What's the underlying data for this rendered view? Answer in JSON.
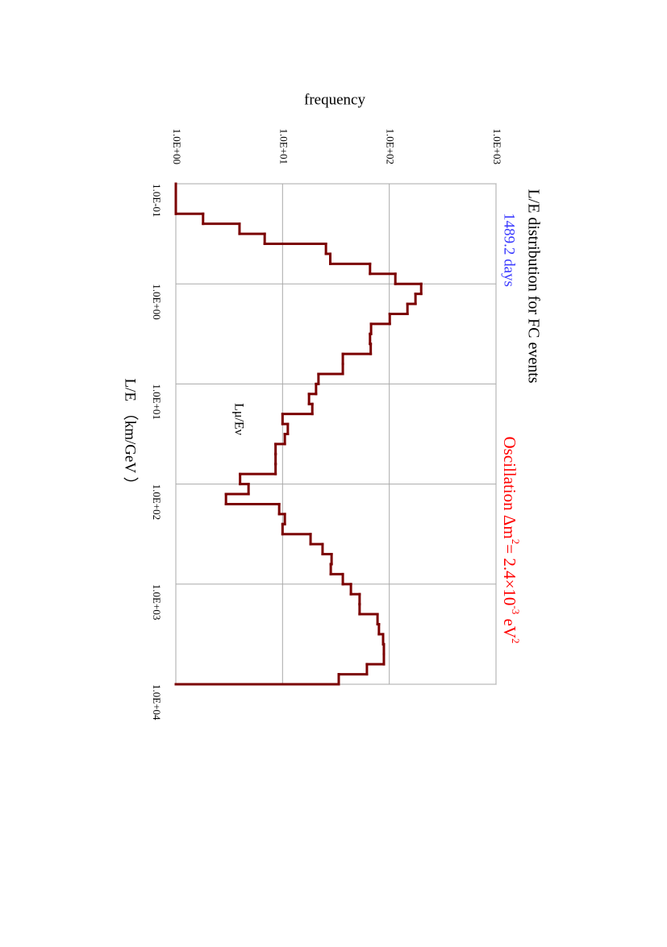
{
  "chart_data": {
    "type": "histogram",
    "title": "L/E distribution for FC events",
    "subtitle": "1489.2 days",
    "subtitle_color": "#3a3aff",
    "oscillation_text": [
      {
        "text": "Oscillation Δm"
      },
      {
        "text": "2",
        "sup": true
      },
      {
        "text": "= 2.4×10"
      },
      {
        "text": "-3",
        "sup": true
      },
      {
        "text": " eV"
      },
      {
        "text": "2",
        "sup": true
      }
    ],
    "oscillation_color": "#ff0000",
    "series_label": "Lμ/Eν",
    "x_label": "L/E （km/GeV ）",
    "y_label": "frequency",
    "color": "#7b0000",
    "log_x": true,
    "log_y": true,
    "grid": true,
    "xlim": [
      0.1,
      10000
    ],
    "ylim": [
      1,
      1000
    ],
    "xticks": [
      {
        "value": 0.1,
        "label": "1.0E-01"
      },
      {
        "value": 1,
        "label": "1.0E+00"
      },
      {
        "value": 10,
        "label": "1.0E+01"
      },
      {
        "value": 100,
        "label": "1.0E+02"
      },
      {
        "value": 1000,
        "label": "1.0E+03"
      },
      {
        "value": 10000,
        "label": "1.0E+04"
      }
    ],
    "yticks": [
      {
        "value": 1,
        "label": "1.0E+00"
      },
      {
        "value": 10,
        "label": "1.0E+01"
      },
      {
        "value": 100,
        "label": "1.0E+02"
      },
      {
        "value": 1000,
        "label": "1.0E+03"
      }
    ],
    "bins": [
      0.1,
      0.1259,
      0.1585,
      0.1995,
      0.2512,
      0.3162,
      0.3981,
      0.5012,
      0.631,
      0.7943,
      1,
      1.259,
      1.585,
      1.995,
      2.512,
      3.162,
      3.981,
      5.012,
      6.31,
      7.943,
      10,
      12.59,
      15.85,
      19.95,
      25.12,
      31.62,
      39.81,
      50.12,
      63.1,
      79.43,
      100,
      125.9,
      158.5,
      199.5,
      251.2,
      316.2,
      398.1,
      501.2,
      631,
      794.3,
      1000,
      1259,
      1585,
      1995,
      2512,
      3162,
      3981,
      5012,
      6310,
      7943,
      10000
    ],
    "values": [
      1,
      1,
      1,
      1.8,
      3.95,
      6.8,
      25.5,
      28,
      66,
      114,
      199,
      176,
      148,
      101,
      67.5,
      66,
      67,
      36.7,
      36.7,
      21.7,
      20.6,
      17.7,
      19,
      10,
      11.2,
      10.5,
      8.6,
      8.6,
      8.6,
      4.0,
      4.8,
      2.95,
      9.3,
      10.5,
      10,
      18.3,
      23.7,
      28.8,
      28.3,
      36.7,
      43.7,
      52.7,
      52.7,
      77.6,
      80,
      87.5,
      89,
      89,
      61.7,
      33.6
    ]
  }
}
